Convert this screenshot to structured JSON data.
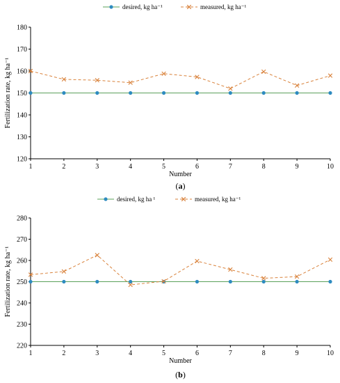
{
  "chart_data": [
    {
      "type": "line",
      "panel_label": "a",
      "xlabel": "Number",
      "ylabel": "Fertilization rate, kg ha⁻¹",
      "x": [
        1,
        2,
        3,
        4,
        5,
        6,
        7,
        8,
        9,
        10
      ],
      "ylim": [
        120,
        180
      ],
      "yticks": [
        120,
        130,
        140,
        150,
        160,
        170,
        180
      ],
      "grid": false,
      "legend_position": "top",
      "series": [
        {
          "name": "desired, kg ha⁻¹",
          "color": "#2e8bc0",
          "marker": "circle",
          "line_color": "#5aa05a",
          "values": [
            150,
            150,
            150,
            150,
            150,
            150,
            150,
            150,
            150,
            150
          ]
        },
        {
          "name": "measured, kg ha⁻¹",
          "color": "#d9823b",
          "marker": "x",
          "dashed": true,
          "values": [
            160,
            156.2,
            155.8,
            154.7,
            158.8,
            157.3,
            152,
            159.7,
            153.4,
            157.9
          ]
        }
      ]
    },
    {
      "type": "line",
      "panel_label": "b",
      "xlabel": "Number",
      "ylabel": "Fertilization rate, kg ha⁻¹",
      "x": [
        1,
        2,
        3,
        4,
        5,
        6,
        7,
        8,
        9,
        10
      ],
      "ylim": [
        220,
        280
      ],
      "yticks": [
        220,
        230,
        240,
        250,
        260,
        270,
        280
      ],
      "grid": false,
      "legend_position": "top",
      "series": [
        {
          "name": "desired, kg ha ¹",
          "color": "#2e8bc0",
          "marker": "circle",
          "line_color": "#5aa05a",
          "values": [
            250,
            250,
            250,
            250,
            250,
            250,
            250,
            250,
            250,
            250
          ]
        },
        {
          "name": "measured, kg ha⁻¹",
          "color": "#d9823b",
          "marker": "x",
          "dashed": true,
          "values": [
            253.3,
            254.8,
            262.5,
            248.5,
            250.2,
            259.7,
            255.7,
            251.6,
            252.4,
            260.4
          ]
        }
      ]
    }
  ]
}
